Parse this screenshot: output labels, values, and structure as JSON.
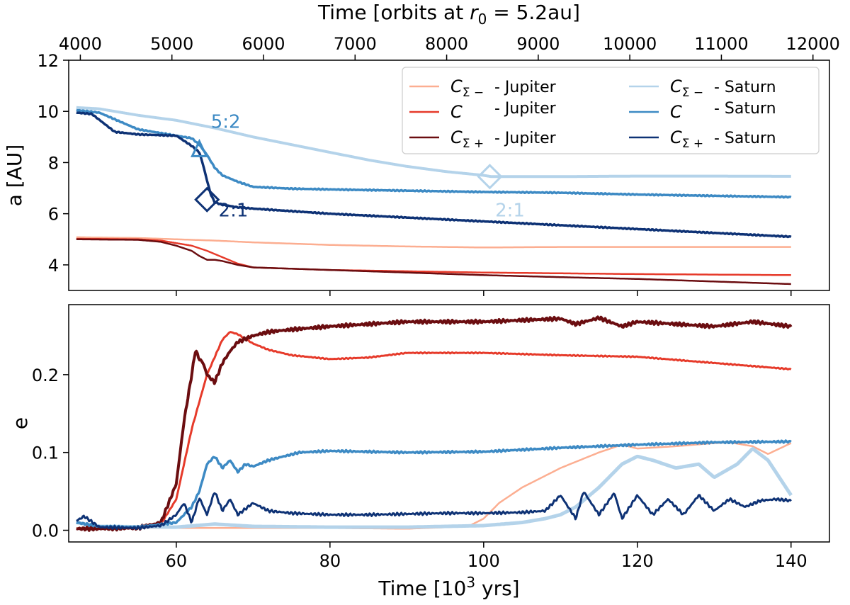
{
  "chart_data": [
    {
      "type": "line",
      "panel": "top",
      "ylabel": "a [AU]",
      "ylim": [
        3,
        12
      ],
      "xlim": [
        46,
        145
      ],
      "xticks": [
        60,
        80,
        100,
        120,
        140
      ],
      "yticks": [
        4,
        6,
        8,
        10,
        12
      ],
      "top_axis": {
        "label_prefix": "Time [orbits at ",
        "label_math": "r",
        "label_sub": "0",
        "label_suffix": " = 5.2au]",
        "xlim": [
          3873,
          12180
        ],
        "ticks": [
          4000,
          5000,
          6000,
          7000,
          8000,
          9000,
          10000,
          11000,
          12000
        ]
      },
      "legend": {
        "position": "top-right",
        "entries": [
          {
            "sym": "C",
            "sub": "Σ −",
            "text": "- Jupiter",
            "color": "#fcae91"
          },
          {
            "sym": "C",
            "sub": "",
            "text": "- Jupiter",
            "color": "#e63a2a"
          },
          {
            "sym": "C",
            "sub": "Σ +",
            "text": "- Jupiter",
            "color": "#6b0d10"
          },
          {
            "sym": "C",
            "sub": "Σ −",
            "text": "- Saturn",
            "color": "#b4d3ea"
          },
          {
            "sym": "C",
            "sub": "",
            "text": "- Saturn",
            "color": "#3d8ac4"
          },
          {
            "sym": "C",
            "sub": "Σ +",
            "text": "- Saturn",
            "color": "#0e3275"
          }
        ]
      },
      "annotations": [
        {
          "text": "5:2",
          "x": 64.5,
          "y": 9.35,
          "color": "#3d8ac4",
          "marker": "triangle",
          "mx": 63.0,
          "my": 8.5
        },
        {
          "text": "2:1",
          "x": 65.5,
          "y": 5.9,
          "color": "#0e3275",
          "marker": "diamond",
          "mx": 64.0,
          "my": 6.55
        },
        {
          "text": "2:1",
          "x": 101.5,
          "y": 5.9,
          "color": "#b4d3ea",
          "marker": "diamond",
          "mx": 100.8,
          "my": 7.45
        }
      ],
      "series": [
        {
          "color": "#b4d3ea",
          "width": 4,
          "x": [
            47,
            50,
            55,
            60,
            65,
            70,
            75,
            80,
            85,
            90,
            95,
            100,
            101,
            105,
            110,
            120,
            130,
            140
          ],
          "y": [
            10.15,
            10.1,
            9.85,
            9.65,
            9.35,
            9.0,
            8.7,
            8.4,
            8.1,
            7.85,
            7.65,
            7.5,
            7.45,
            7.45,
            7.45,
            7.47,
            7.47,
            7.46
          ]
        },
        {
          "color": "#3d8ac4",
          "width": 3.5,
          "x": [
            47,
            50,
            55,
            60,
            62,
            63,
            64,
            65,
            66,
            68,
            70,
            75,
            80,
            90,
            100,
            110,
            120,
            130,
            140
          ],
          "y": [
            10.05,
            9.95,
            9.3,
            9.05,
            8.95,
            8.7,
            8.3,
            7.8,
            7.5,
            7.25,
            7.05,
            6.98,
            6.95,
            6.9,
            6.85,
            6.82,
            6.75,
            6.7,
            6.65
          ]
        },
        {
          "color": "#0e3275",
          "width": 3.5,
          "x": [
            47,
            49,
            52,
            55,
            60,
            61,
            62,
            63,
            63.5,
            64,
            64.5,
            65,
            66,
            68,
            70,
            75,
            80,
            90,
            100,
            110,
            120,
            130,
            140
          ],
          "y": [
            9.95,
            9.9,
            9.2,
            9.1,
            9.05,
            8.85,
            8.65,
            8.4,
            7.9,
            7.3,
            6.75,
            6.45,
            6.35,
            6.25,
            6.2,
            6.1,
            6.0,
            5.85,
            5.7,
            5.55,
            5.4,
            5.25,
            5.1
          ]
        },
        {
          "color": "#fcae91",
          "width": 2.5,
          "x": [
            47,
            55,
            60,
            65,
            70,
            80,
            90,
            100,
            110,
            120,
            130,
            140
          ],
          "y": [
            5.08,
            5.05,
            5.0,
            4.95,
            4.88,
            4.78,
            4.72,
            4.68,
            4.7,
            4.7,
            4.7,
            4.7
          ]
        },
        {
          "color": "#e63a2a",
          "width": 2.5,
          "x": [
            47,
            55,
            58,
            60,
            62,
            64,
            66,
            68,
            70,
            75,
            80,
            90,
            100,
            110,
            120,
            130,
            140
          ],
          "y": [
            5.02,
            5.0,
            4.95,
            4.85,
            4.75,
            4.55,
            4.3,
            4.05,
            3.9,
            3.85,
            3.8,
            3.75,
            3.7,
            3.67,
            3.64,
            3.62,
            3.6
          ]
        },
        {
          "color": "#6b0d10",
          "width": 2.5,
          "x": [
            47,
            55,
            58,
            60,
            62,
            63,
            64,
            65,
            66,
            68,
            70,
            75,
            80,
            90,
            100,
            110,
            120,
            130,
            140
          ],
          "y": [
            5.0,
            4.98,
            4.9,
            4.75,
            4.55,
            4.35,
            4.2,
            4.2,
            4.15,
            4.0,
            3.9,
            3.85,
            3.8,
            3.7,
            3.6,
            3.52,
            3.45,
            3.35,
            3.25
          ]
        }
      ]
    },
    {
      "type": "line",
      "panel": "bottom",
      "xlabel_prefix": "Time [10",
      "xlabel_sup": "3",
      "xlabel_suffix": " yrs]",
      "ylabel": "e",
      "ylim": [
        -0.015,
        0.29
      ],
      "xlim": [
        46,
        145
      ],
      "xticks": [
        60,
        80,
        100,
        120,
        140
      ],
      "yticks": [
        0.0,
        0.1,
        0.2
      ],
      "ytick_labels": [
        "0.0",
        "0.1",
        "0.2"
      ],
      "series": [
        {
          "color": "#fcae91",
          "width": 2.5,
          "x": [
            47,
            50,
            60,
            70,
            80,
            90,
            98,
            100,
            102,
            105,
            110,
            115,
            118,
            120,
            125,
            130,
            132,
            135,
            137,
            140
          ],
          "y": [
            0.003,
            0.003,
            0.003,
            0.003,
            0.003,
            0.002,
            0.005,
            0.015,
            0.035,
            0.055,
            0.08,
            0.1,
            0.11,
            0.105,
            0.108,
            0.112,
            0.113,
            0.108,
            0.098,
            0.112
          ]
        },
        {
          "color": "#b4d3ea",
          "width": 5,
          "x": [
            47,
            50,
            60,
            65,
            70,
            80,
            90,
            100,
            105,
            108,
            110,
            112,
            115,
            118,
            120,
            122,
            125,
            128,
            130,
            133,
            135,
            137,
            140
          ],
          "y": [
            0.01,
            0.005,
            0.004,
            0.008,
            0.005,
            0.004,
            0.004,
            0.006,
            0.01,
            0.015,
            0.02,
            0.03,
            0.055,
            0.085,
            0.095,
            0.09,
            0.08,
            0.085,
            0.068,
            0.085,
            0.105,
            0.09,
            0.045
          ]
        },
        {
          "color": "#e63a2a",
          "width": 3,
          "x": [
            47,
            50,
            55,
            58,
            60,
            62,
            64,
            66,
            67,
            68,
            70,
            72,
            75,
            80,
            85,
            90,
            100,
            110,
            120,
            130,
            140
          ],
          "y": [
            0.002,
            0.002,
            0.003,
            0.008,
            0.04,
            0.13,
            0.2,
            0.245,
            0.255,
            0.252,
            0.24,
            0.232,
            0.225,
            0.22,
            0.222,
            0.228,
            0.228,
            0.225,
            0.223,
            0.215,
            0.207
          ]
        },
        {
          "color": "#6b0d10",
          "width": 4,
          "x": [
            47,
            50,
            55,
            58,
            60,
            61,
            62,
            62.5,
            63,
            63.5,
            64,
            65,
            66,
            67,
            68,
            70,
            72,
            75,
            80,
            85,
            90,
            100,
            105,
            110,
            112,
            115,
            118,
            120,
            125,
            130,
            135,
            140
          ],
          "y": [
            0.002,
            0.002,
            0.003,
            0.01,
            0.06,
            0.14,
            0.2,
            0.232,
            0.22,
            0.215,
            0.2,
            0.19,
            0.215,
            0.23,
            0.242,
            0.25,
            0.255,
            0.258,
            0.262,
            0.265,
            0.268,
            0.268,
            0.27,
            0.272,
            0.265,
            0.273,
            0.262,
            0.268,
            0.265,
            0.262,
            0.268,
            0.262
          ]
        },
        {
          "color": "#3d8ac4",
          "width": 3.5,
          "x": [
            47,
            50,
            55,
            60,
            62,
            63,
            64,
            65,
            66,
            67,
            68,
            69,
            70,
            72,
            74,
            76,
            80,
            90,
            100,
            110,
            120,
            130,
            140
          ],
          "y": [
            0.01,
            0.005,
            0.004,
            0.01,
            0.03,
            0.05,
            0.085,
            0.095,
            0.08,
            0.09,
            0.075,
            0.085,
            0.082,
            0.09,
            0.095,
            0.1,
            0.102,
            0.1,
            0.101,
            0.106,
            0.11,
            0.113,
            0.114
          ]
        },
        {
          "color": "#0e3275",
          "width": 3,
          "x": [
            47,
            48,
            50,
            55,
            58,
            60,
            61,
            62,
            63,
            64,
            65,
            66,
            67,
            68,
            70,
            72,
            75,
            80,
            85,
            90,
            95,
            100,
            105,
            108,
            110,
            111,
            112,
            113,
            115,
            117,
            118,
            120,
            122,
            124,
            126,
            128,
            130,
            132,
            134,
            136,
            138,
            140
          ],
          "y": [
            0.012,
            0.018,
            0.004,
            0.003,
            0.006,
            0.02,
            0.035,
            0.01,
            0.042,
            0.02,
            0.05,
            0.025,
            0.04,
            0.02,
            0.035,
            0.025,
            0.022,
            0.02,
            0.02,
            0.021,
            0.022,
            0.022,
            0.023,
            0.025,
            0.045,
            0.03,
            0.015,
            0.05,
            0.02,
            0.048,
            0.015,
            0.045,
            0.02,
            0.04,
            0.02,
            0.045,
            0.025,
            0.04,
            0.03,
            0.038,
            0.04,
            0.038
          ]
        }
      ]
    }
  ]
}
